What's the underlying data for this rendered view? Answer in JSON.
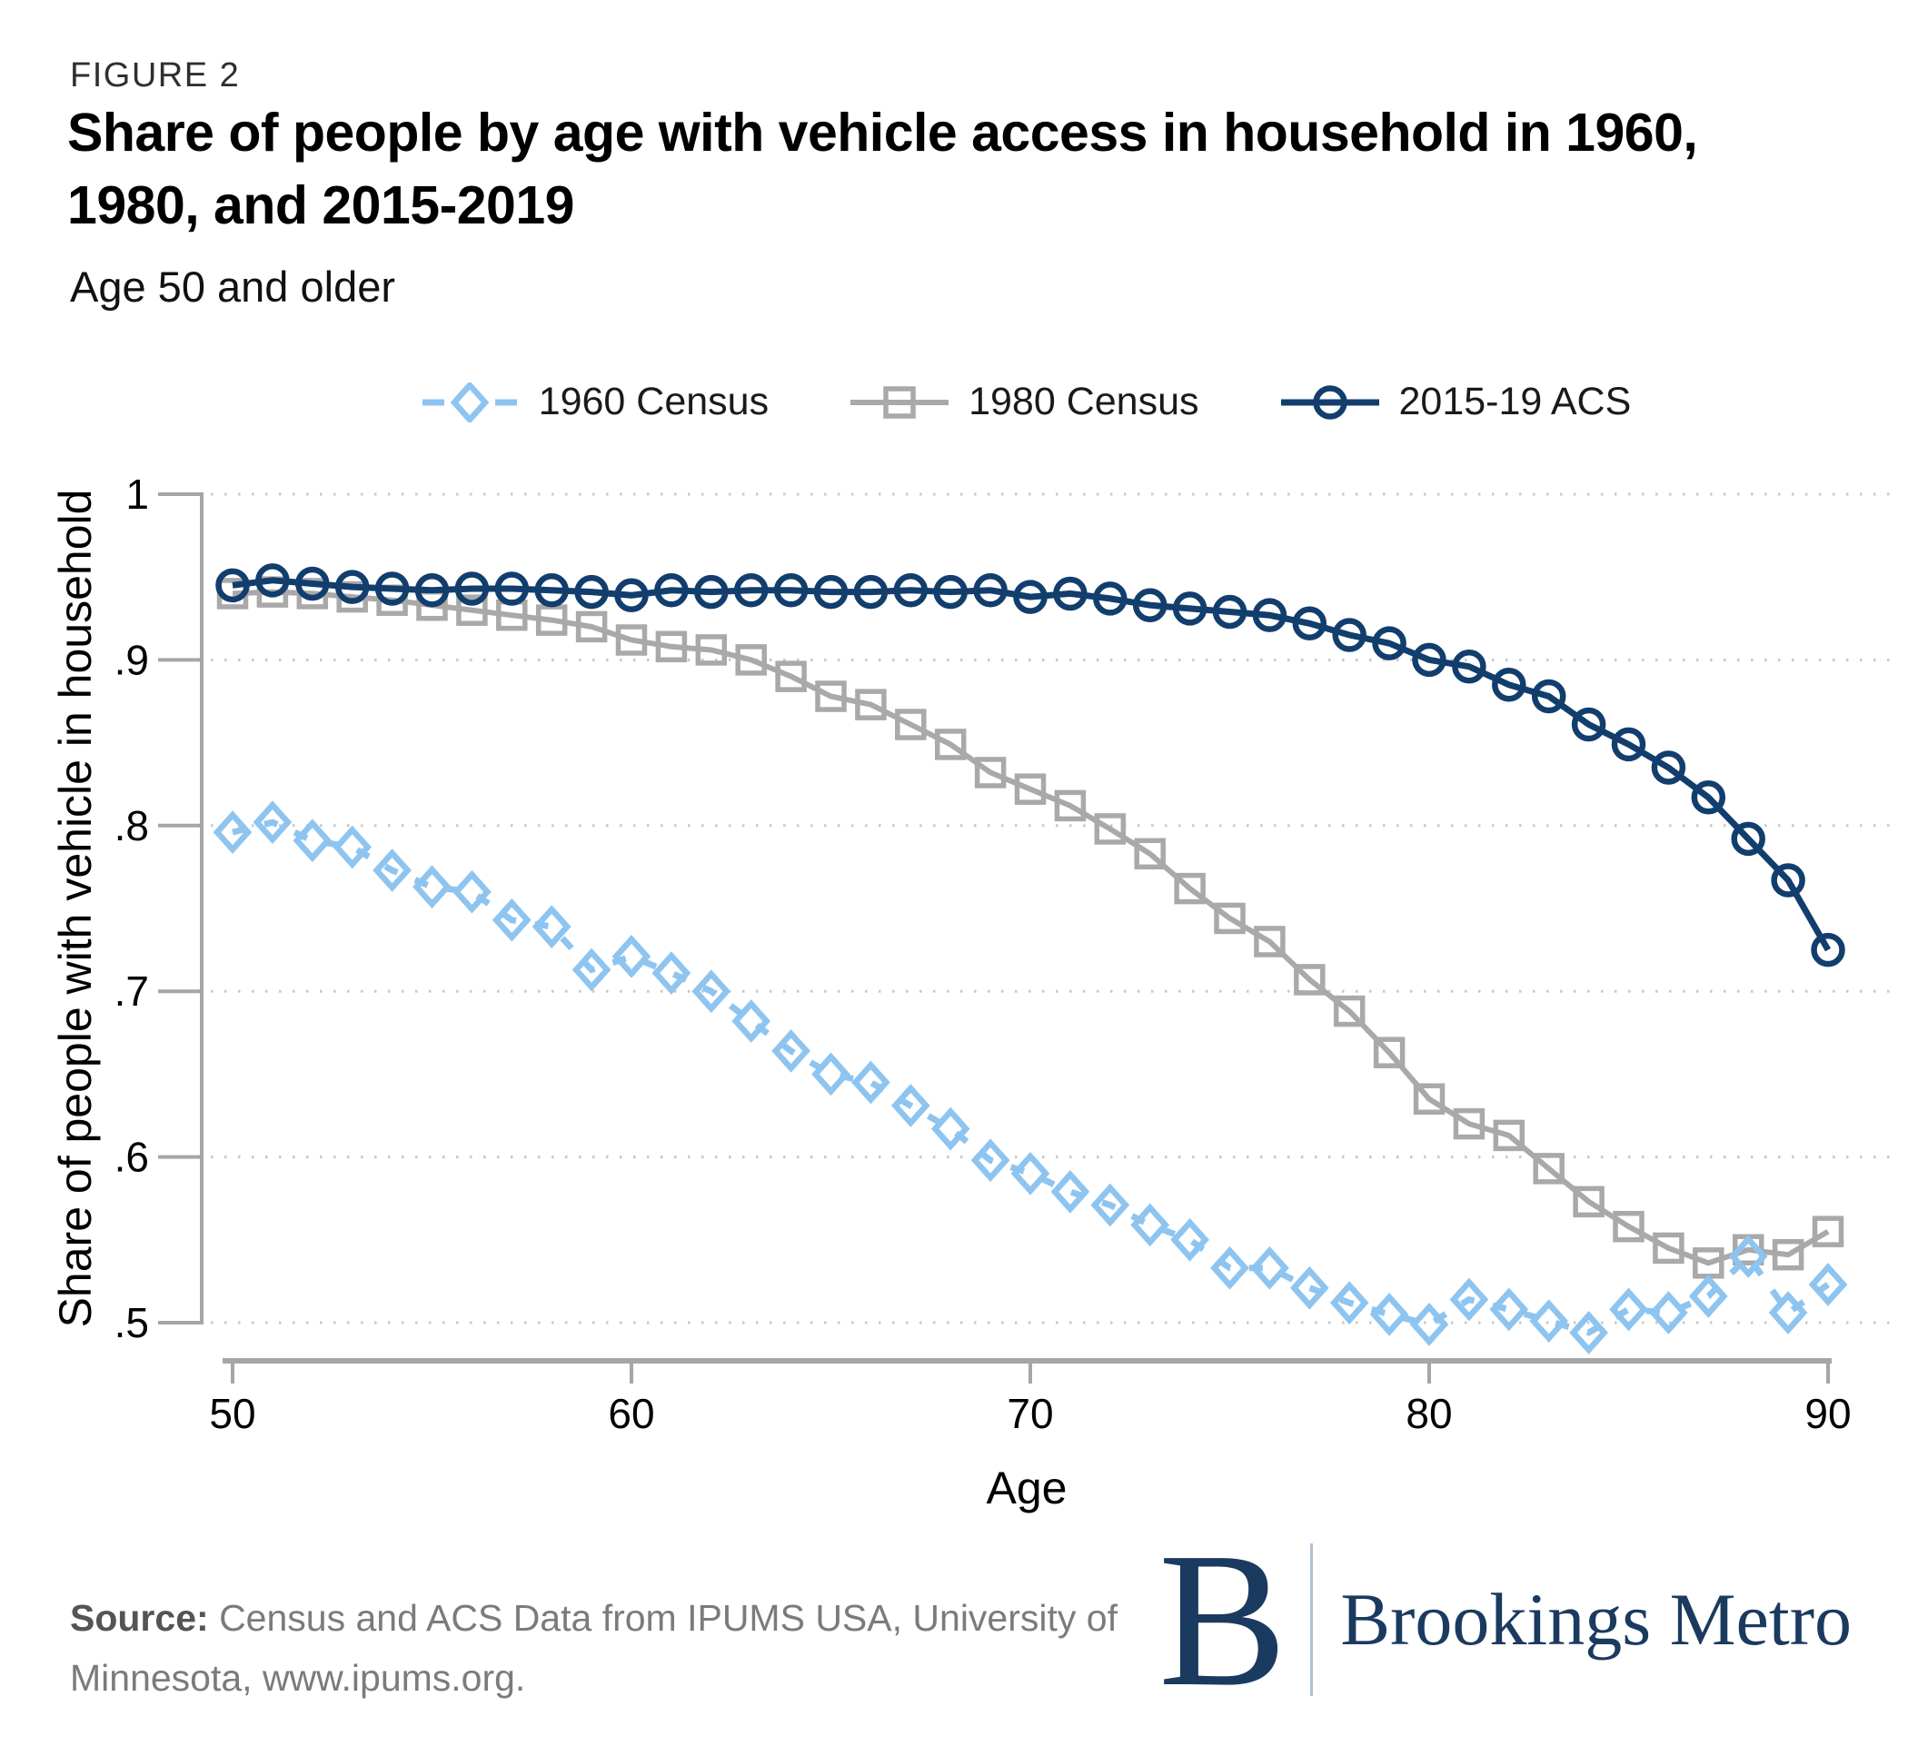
{
  "header": {
    "figure_label": "FIGURE 2",
    "title_line1": "Share of people by age with vehicle access in household in 1960,",
    "title_line2": "1980, and 2015-2019",
    "subtitle": "Age 50 and older"
  },
  "source": {
    "label": "Source:",
    "text_line1": "Census and ACS Data from IPUMS USA, University of",
    "text_line2": "Minnesota, www.ipums.org."
  },
  "logo": {
    "monogram": "B",
    "wordmark": "Brookings Metro"
  },
  "colors": {
    "series_1960": "#8EC4F0",
    "series_1980": "#A9A9A9",
    "series_acs": "#123E6E",
    "axis_gray": "#A6A6A6",
    "gridline_gray": "#C8C8C8",
    "logo_navy": "#1B3A5F"
  },
  "chart_data": {
    "type": "line",
    "title": "Share of people by age with vehicle access in household in 1960, 1980, and 2015-2019",
    "subtitle": "Age 50 and older",
    "xlabel": "Age",
    "ylabel": "Share of people with vehicle in household",
    "xlim": [
      50,
      90
    ],
    "ylim": [
      0.5,
      1.0
    ],
    "grid": "horizontal dotted",
    "legend_position": "top center",
    "x_ticks": [
      50,
      60,
      70,
      80,
      90
    ],
    "y_ticks": [
      {
        "label": "1",
        "value": 1.0
      },
      {
        "label": ".9",
        "value": 0.9
      },
      {
        "label": ".8",
        "value": 0.8
      },
      {
        "label": ".7",
        "value": 0.7
      },
      {
        "label": ".6",
        "value": 0.6
      },
      {
        "label": ".5",
        "value": 0.5
      }
    ],
    "ages": [
      50,
      51,
      52,
      53,
      54,
      55,
      56,
      57,
      58,
      59,
      60,
      61,
      62,
      63,
      64,
      65,
      66,
      67,
      68,
      69,
      70,
      71,
      72,
      73,
      74,
      75,
      76,
      77,
      78,
      79,
      80,
      81,
      82,
      83,
      84,
      85,
      86,
      87,
      88,
      89,
      90
    ],
    "series": [
      {
        "name": "1960 Census",
        "marker": "diamond",
        "line": "dashed",
        "color": "#8EC4F0",
        "values": [
          0.796,
          0.802,
          0.791,
          0.787,
          0.773,
          0.763,
          0.76,
          0.743,
          0.739,
          0.713,
          0.721,
          0.711,
          0.7,
          0.682,
          0.664,
          0.65,
          0.645,
          0.631,
          0.617,
          0.598,
          0.59,
          0.579,
          0.571,
          0.559,
          0.55,
          0.533,
          0.533,
          0.521,
          0.512,
          0.505,
          0.499,
          0.514,
          0.508,
          0.501,
          0.494,
          0.508,
          0.506,
          0.516,
          0.54,
          0.506,
          0.523
        ]
      },
      {
        "name": "1980 Census",
        "marker": "square",
        "line": "solid",
        "color": "#A9A9A9",
        "values": [
          0.94,
          0.941,
          0.94,
          0.938,
          0.936,
          0.933,
          0.93,
          0.927,
          0.924,
          0.92,
          0.912,
          0.908,
          0.906,
          0.9,
          0.89,
          0.878,
          0.873,
          0.861,
          0.849,
          0.832,
          0.822,
          0.812,
          0.798,
          0.783,
          0.762,
          0.744,
          0.73,
          0.707,
          0.688,
          0.663,
          0.635,
          0.62,
          0.613,
          0.593,
          0.573,
          0.558,
          0.545,
          0.536,
          0.544,
          0.541,
          0.555
        ]
      },
      {
        "name": "2015-19 ACS",
        "marker": "circle",
        "line": "solid",
        "color": "#123E6E",
        "values": [
          0.945,
          0.948,
          0.946,
          0.944,
          0.943,
          0.942,
          0.943,
          0.943,
          0.942,
          0.941,
          0.939,
          0.942,
          0.941,
          0.942,
          0.942,
          0.941,
          0.941,
          0.942,
          0.941,
          0.942,
          0.938,
          0.94,
          0.937,
          0.933,
          0.931,
          0.929,
          0.927,
          0.922,
          0.915,
          0.91,
          0.9,
          0.896,
          0.885,
          0.878,
          0.861,
          0.849,
          0.835,
          0.817,
          0.792,
          0.767,
          0.725
        ]
      }
    ]
  }
}
